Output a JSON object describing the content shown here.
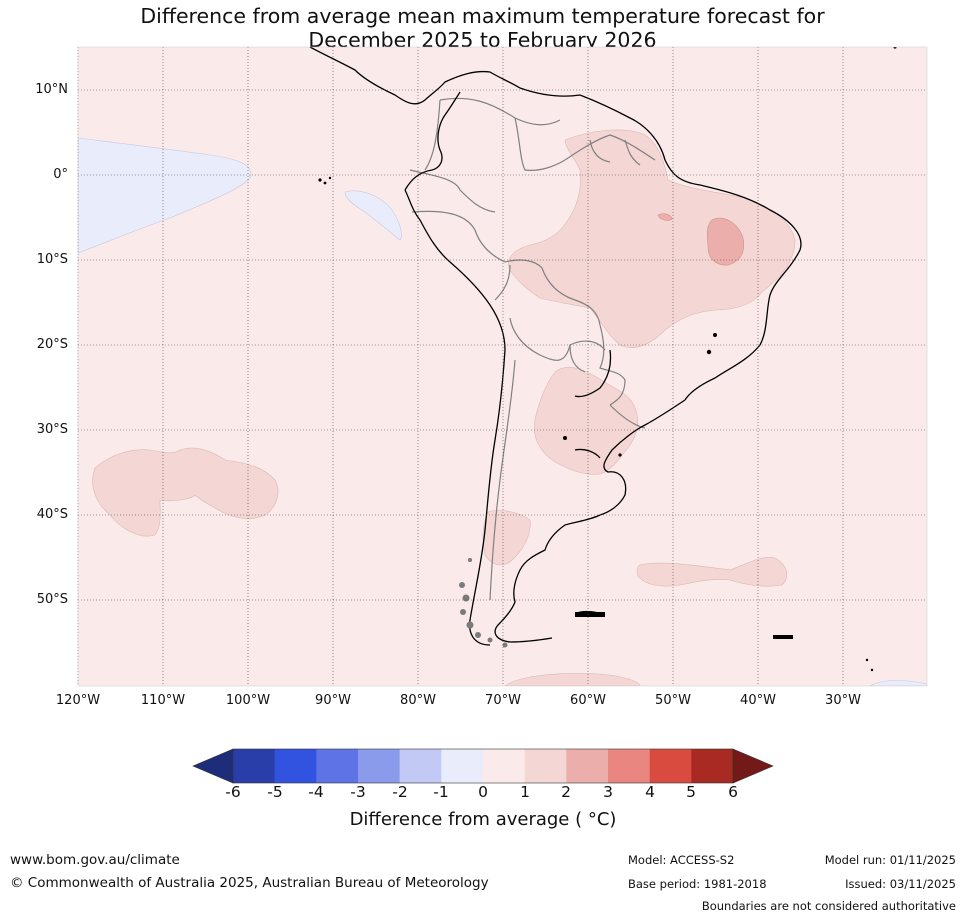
{
  "title": {
    "line1": "Difference from average mean maximum temperature forecast for",
    "line2": "December 2025 to February 2026"
  },
  "map": {
    "latitude_labels": [
      "10°N",
      "0°",
      "10°S",
      "20°S",
      "30°S",
      "40°S",
      "50°S"
    ],
    "longitude_labels": [
      "120°W",
      "110°W",
      "100°W",
      "90°W",
      "80°W",
      "70°W",
      "60°W",
      "50°W",
      "40°W",
      "30°W"
    ],
    "region": "South America",
    "background_anomaly_class": "0 to 1",
    "colors": {
      "ocean_land_fill": "#fbeaea",
      "anomaly_1_2": "#f4d6d4",
      "anomaly_2_3": "#ecaeaa",
      "anomaly_neg1_0": "#e9ecfb",
      "coastline": "#000000",
      "border": "#808080",
      "gridline": "#444444"
    }
  },
  "colorbar": {
    "ticks": [
      "-6",
      "-5",
      "-4",
      "-3",
      "-2",
      "-1",
      "0",
      "1",
      "2",
      "3",
      "4",
      "5",
      "6"
    ],
    "colors": [
      "#293ea8",
      "#3153e0",
      "#5e74e6",
      "#8a9bec",
      "#c2c9f4",
      "#e9ecfb",
      "#fbeaea",
      "#f4d6d4",
      "#ecaeaa",
      "#e8867f",
      "#d94b3f",
      "#a92a22"
    ],
    "under_color": "#1d2d7a",
    "over_color": "#731a18",
    "label": "Difference from average (∘C)",
    "label_display": "Difference from average ( °C)"
  },
  "footer": {
    "website": "www.bom.gov.au/climate",
    "copyright": "© Commonwealth of Australia 2025, Australian Bureau of Meteorology",
    "model": "Model: ACCESS-S2",
    "base_period": "Base period: 1981-2018",
    "model_run": "Model run: 01/11/2025",
    "issued": "Issued: 03/11/2025",
    "disclaimer": "Boundaries are not considered authoritative"
  }
}
